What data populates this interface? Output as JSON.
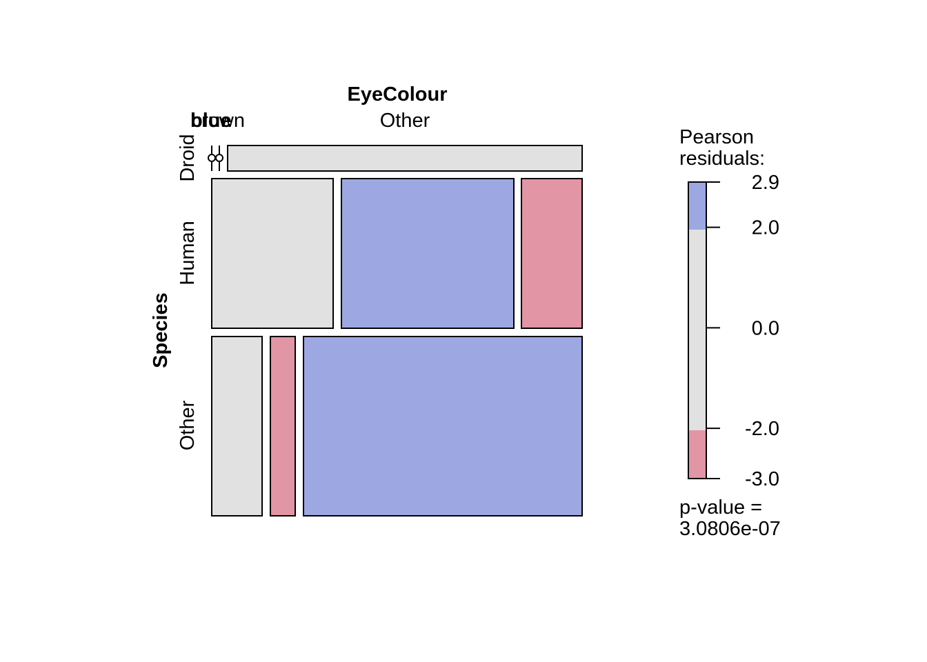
{
  "chart_data": {
    "type": "mosaic",
    "title": "",
    "column_variable": "EyeColour",
    "row_variable": "Species",
    "column_labels": [
      "blue",
      "brown",
      "Other"
    ],
    "row_labels": [
      "Droid",
      "Human",
      "Other"
    ],
    "cells": [
      {
        "row": "Droid",
        "col": "blue",
        "residual_band": "zero-count"
      },
      {
        "row": "Droid",
        "col": "brown",
        "residual_band": "zero-count"
      },
      {
        "row": "Droid",
        "col": "Other",
        "residual_band": "-2 to 2"
      },
      {
        "row": "Human",
        "col": "blue",
        "residual_band": "-2 to 2"
      },
      {
        "row": "Human",
        "col": "brown",
        "residual_band": "2 to 2.9"
      },
      {
        "row": "Human",
        "col": "Other",
        "residual_band": "-3 to -2"
      },
      {
        "row": "Other",
        "col": "blue",
        "residual_band": "-2 to 2"
      },
      {
        "row": "Other",
        "col": "brown",
        "residual_band": "-3 to -2"
      },
      {
        "row": "Other",
        "col": "Other",
        "residual_band": "2 to 2.9"
      }
    ],
    "legend": {
      "title_line1": "Pearson",
      "title_line2": "residuals:",
      "ticks": [
        "2.9",
        "2.0",
        "0.0",
        "-2.0",
        "-3.0"
      ],
      "tick_values": [
        2.9,
        2.0,
        0.0,
        -2.0,
        -3.0
      ],
      "pvalue_line1": "p-value =",
      "pvalue_line2": "3.0806e-07"
    },
    "colors": {
      "positive": "#9da8e2",
      "neutral": "#e1e1e1",
      "negative": "#e295a4",
      "border": "#000000"
    }
  }
}
